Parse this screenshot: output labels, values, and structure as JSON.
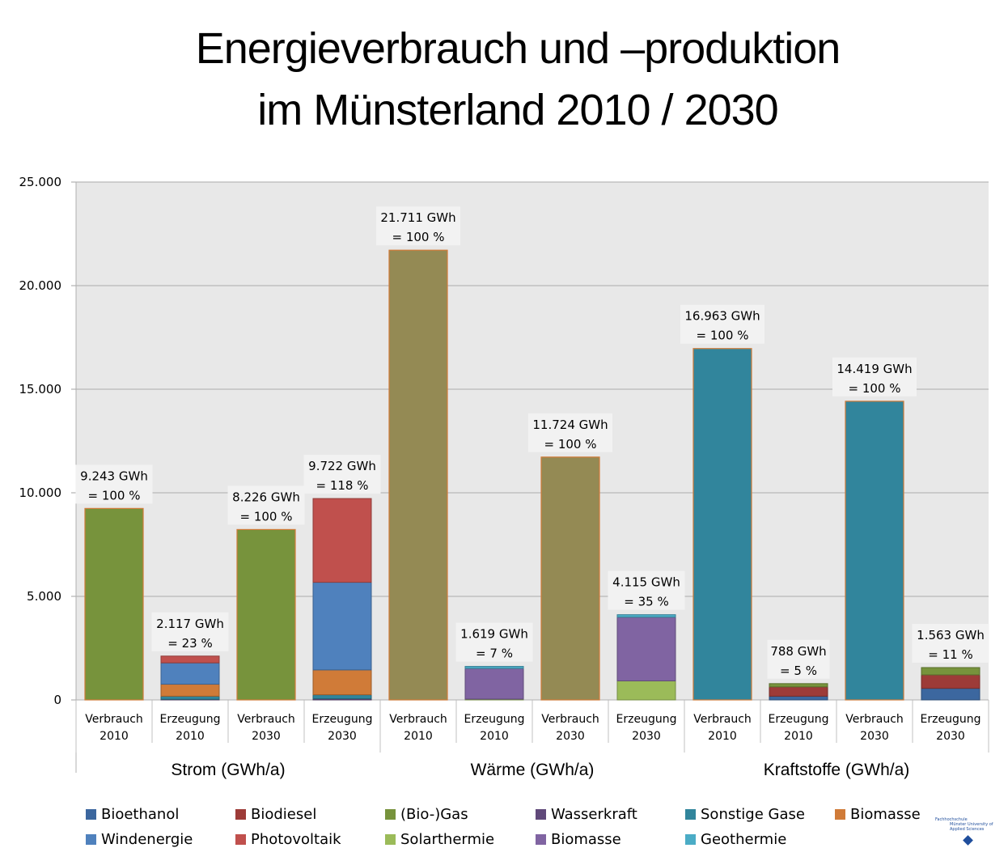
{
  "title": {
    "line1": "Energieverbrauch und –produktion",
    "line2": "im Münsterland 2010 / 2030"
  },
  "chart_data": {
    "type": "bar",
    "stacked": true,
    "title": "Energieverbrauch und –produktion im Münsterland 2010 / 2030",
    "xlabel": "",
    "ylabel": "",
    "ylim": [
      0,
      25000
    ],
    "yticks": [
      0,
      5000,
      10000,
      15000,
      20000,
      25000
    ],
    "ytick_labels": [
      "0",
      "5.000",
      "10.000",
      "15.000",
      "20.000",
      "25.000"
    ],
    "grid": true,
    "legend_position": "bottom",
    "groups": [
      {
        "label": "Strom (GWh/a)",
        "categories": [
          0,
          1,
          2,
          3
        ]
      },
      {
        "label": "Wärme (GWh/a)",
        "categories": [
          4,
          5,
          6,
          7
        ]
      },
      {
        "label": "Kraftstoffe (GWh/a)",
        "categories": [
          8,
          9,
          10,
          11
        ]
      }
    ],
    "categories": [
      {
        "line1": "Verbrauch",
        "line2": "2010"
      },
      {
        "line1": "Erzeugung",
        "line2": "2010"
      },
      {
        "line1": "Verbrauch",
        "line2": "2030"
      },
      {
        "line1": "Erzeugung",
        "line2": "2030"
      },
      {
        "line1": "Verbrauch",
        "line2": "2010"
      },
      {
        "line1": "Erzeugung",
        "line2": "2010"
      },
      {
        "line1": "Verbrauch",
        "line2": "2030"
      },
      {
        "line1": "Erzeugung",
        "line2": "2030"
      },
      {
        "line1": "Verbrauch",
        "line2": "2010"
      },
      {
        "line1": "Erzeugung",
        "line2": "2010"
      },
      {
        "line1": "Verbrauch",
        "line2": "2030"
      },
      {
        "line1": "Erzeugung",
        "line2": "2030"
      }
    ],
    "consumption_colors": {
      "strom": "#77933c",
      "waerme": "#948a54",
      "kraftstoffe": "#31859c"
    },
    "bars": [
      {
        "type": "consumption",
        "color_key": "strom",
        "value": 9243,
        "label1": "9.243 GWh",
        "label2": "= 100 %"
      },
      {
        "type": "production",
        "segments": {
          "Wasserkraft": 30,
          "Sonstige Gase": 150,
          "Biomasse (Strom)": 580,
          "Windenergie": 1030,
          "Photovoltaik": 327
        },
        "value": 2117,
        "label1": "2.117 GWh",
        "label2": "= 23 %"
      },
      {
        "type": "consumption",
        "color_key": "strom",
        "value": 8226,
        "label1": "8.226 GWh",
        "label2": "= 100 %"
      },
      {
        "type": "production",
        "segments": {
          "Wasserkraft": 60,
          "Sonstige Gase": 190,
          "Biomasse (Strom)": 1200,
          "Windenergie": 4230,
          "Photovoltaik": 4042
        },
        "value": 9722,
        "label1": "9.722 GWh",
        "label2": "= 118 %"
      },
      {
        "type": "consumption",
        "color_key": "waerme",
        "value": 21711,
        "label1": "21.711 GWh",
        "label2": "= 100 %"
      },
      {
        "type": "production",
        "segments": {
          "Solarthermie": 40,
          "Biomasse (Wärme)": 1480,
          "Geothermie": 99
        },
        "value": 1619,
        "label1": "1.619 GWh",
        "label2": "= 7 %"
      },
      {
        "type": "consumption",
        "color_key": "waerme",
        "value": 11724,
        "label1": "11.724 GWh",
        "label2": "= 100 %"
      },
      {
        "type": "production",
        "segments": {
          "Solarthermie": 920,
          "Biomasse (Wärme)": 3075,
          "Geothermie": 120
        },
        "value": 4115,
        "label1": "4.115 GWh",
        "label2": "= 35 %"
      },
      {
        "type": "consumption",
        "color_key": "kraftstoffe",
        "value": 16963,
        "label1": "16.963 GWh",
        "label2": "= 100 %"
      },
      {
        "type": "production",
        "segments": {
          "Bioethanol": 180,
          "Biodiesel": 450,
          "(Bio-)Gas": 158
        },
        "value": 788,
        "label1": "788 GWh",
        "label2": "= 5 %"
      },
      {
        "type": "consumption",
        "color_key": "kraftstoffe",
        "value": 14419,
        "label1": "14.419 GWh",
        "label2": "= 100 %"
      },
      {
        "type": "production",
        "segments": {
          "Bioethanol": 560,
          "Biodiesel": 650,
          "(Bio-)Gas": 353
        },
        "value": 1563,
        "label1": "1.563 GWh",
        "label2": "= 11 %"
      }
    ],
    "stack_order": [
      "Bioethanol",
      "Biodiesel",
      "Wasserkraft",
      "Sonstige Gase",
      "Biomasse (Strom)",
      "Windenergie",
      "Photovoltaik",
      "Solarthermie",
      "Biomasse (Wärme)",
      "Geothermie",
      "(Bio-)Gas"
    ],
    "series": [
      {
        "name": "Bioethanol",
        "key": "Bioethanol",
        "color": "#3c679f"
      },
      {
        "name": "Biodiesel",
        "key": "Biodiesel",
        "color": "#9d3b38"
      },
      {
        "name": "(Bio-)Gas",
        "key": "(Bio-)Gas",
        "color": "#77933c"
      },
      {
        "name": "Wasserkraft",
        "key": "Wasserkraft",
        "color": "#60497a"
      },
      {
        "name": "Sonstige Gase",
        "key": "Sonstige Gase",
        "color": "#31859c"
      },
      {
        "name": "Biomasse",
        "key": "Biomasse (Strom)",
        "color": "#d07b38"
      },
      {
        "name": "Windenergie",
        "key": "Windenergie",
        "color": "#4f81bd"
      },
      {
        "name": "Photovoltaik",
        "key": "Photovoltaik",
        "color": "#c0504d"
      },
      {
        "name": "Solarthermie",
        "key": "Solarthermie",
        "color": "#9bbb59"
      },
      {
        "name": "Biomasse",
        "key": "Biomasse (Wärme)",
        "color": "#8064a2"
      },
      {
        "name": "Geothermie",
        "key": "Geothermie",
        "color": "#4bacc6"
      }
    ]
  },
  "logo": {
    "line1": "Fachhochschule",
    "line2": "Münster  University of Applied Sciences"
  }
}
